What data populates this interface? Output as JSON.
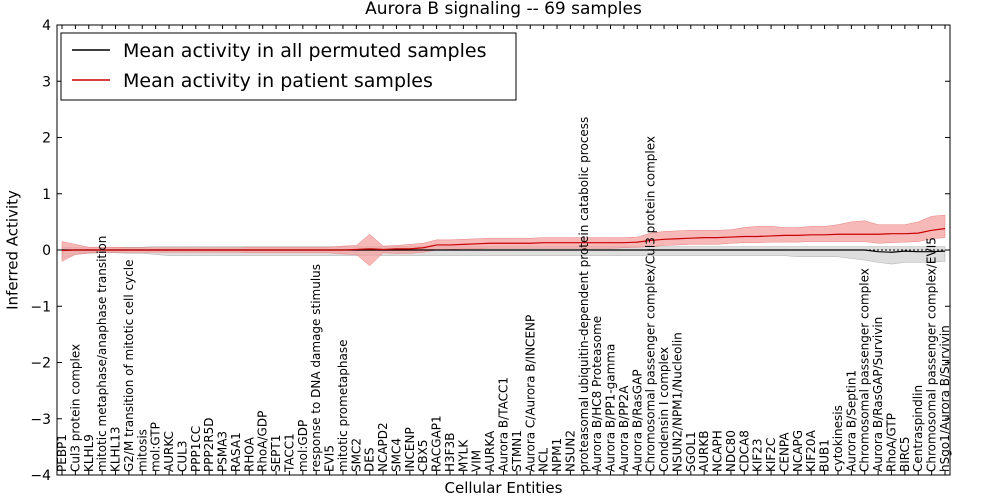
{
  "chart_data": {
    "type": "line",
    "title": "Aurora B signaling -- 69 samples",
    "xlabel": "Cellular Entities",
    "ylabel": "Inferred Activity",
    "ylim": [
      -4,
      4
    ],
    "yticks": [
      "−4",
      "−3",
      "−2",
      "−1",
      "0",
      "1",
      "2",
      "3",
      "4"
    ],
    "legend_position": "top-left",
    "colors": {
      "permuted": "#000000",
      "patient": "#cc0000",
      "patient_band": "#f4a0a0",
      "permuted_band": "#c8c8c8"
    },
    "categories": [
      "PEBP1",
      "Cul3 protein complex",
      "KLHL9",
      "mitotic metaphase/anaphase transition",
      "KLHL13",
      "G2/M transition of mitotic cell cycle",
      "mitosis",
      "mol:GTP",
      "AURKC",
      "CUL3",
      "PPP1CC",
      "PPP2R5D",
      "PSMA3",
      "RASA1",
      "RHOA",
      "RhoA/GDP",
      "SEPT1",
      "TACC1",
      "mol:GDP",
      "response to DNA damage stimulus",
      "EVI5",
      "mitotic prometaphase",
      "SMC2",
      "DES",
      "NCAPD2",
      "SMC4",
      "INCENP",
      "CBX5",
      "RACGAP1",
      "H3F3B",
      "MYLK",
      "VIM",
      "AURKA",
      "Aurora B/TACC1",
      "STMN1",
      "Aurora C/Aurora B/INCENP",
      "NCL",
      "NPM1",
      "NSUN2",
      "proteasomal ubiquitin-dependent protein catabolic process",
      "Aurora B/HC8 Proteasome",
      "Aurora B/PP1-gamma",
      "Aurora B/PP2A",
      "Aurora B/RasGAP",
      "Chromosomal passenger complex/Cul3 protein complex",
      "Condensin I complex",
      "NSUN2/NPM1/Nucleolin",
      "SGOL1",
      "AURKB",
      "NCAPH",
      "NDC80",
      "CDCA8",
      "KIF23",
      "KIF2C",
      "CENPA",
      "NCAPG",
      "KIF20A",
      "BUB1",
      "cytokinesis",
      "Aurora B/Septin1",
      "Chromosomal passenger complex",
      "Aurora B/RasGAP/Survivin",
      "RhoA/GTP",
      "BIRC5",
      "Centraspindlin",
      "Chromosomal passenger complex/EVI5",
      "hSgo1/Aurora B/Survivin"
    ],
    "series": [
      {
        "name": "Mean activity in all permuted samples",
        "values": [
          0,
          0,
          0,
          0,
          0,
          0,
          0,
          0,
          0,
          0,
          0,
          0,
          0,
          0,
          0,
          0,
          0,
          0,
          0,
          0,
          0,
          0,
          0,
          0,
          0,
          0,
          0,
          0,
          0,
          0,
          0,
          0,
          0,
          0,
          0,
          0,
          0,
          0,
          0,
          0,
          0,
          0,
          0,
          0,
          0,
          0,
          0,
          0,
          0,
          0,
          0,
          0,
          0,
          0,
          0,
          0,
          0,
          0,
          0,
          0,
          0,
          -0.03,
          -0.04,
          -0.02,
          -0.03,
          -0.03,
          -0.02
        ],
        "lower": [
          -0.15,
          -0.08,
          -0.06,
          -0.05,
          -0.05,
          -0.06,
          -0.06,
          -0.08,
          -0.1,
          -0.1,
          -0.1,
          -0.1,
          -0.1,
          -0.1,
          -0.1,
          -0.1,
          -0.1,
          -0.1,
          -0.1,
          -0.1,
          -0.1,
          -0.1,
          -0.1,
          -0.1,
          -0.1,
          -0.1,
          -0.1,
          -0.1,
          -0.1,
          -0.1,
          -0.1,
          -0.1,
          -0.1,
          -0.1,
          -0.1,
          -0.1,
          -0.1,
          -0.1,
          -0.1,
          -0.1,
          -0.1,
          -0.1,
          -0.1,
          -0.1,
          -0.1,
          -0.1,
          -0.1,
          -0.1,
          -0.1,
          -0.1,
          -0.1,
          -0.1,
          -0.1,
          -0.1,
          -0.1,
          -0.12,
          -0.12,
          -0.12,
          -0.12,
          -0.15,
          -0.18,
          -0.22,
          -0.25,
          -0.22,
          -0.22,
          -0.22,
          -0.2
        ],
        "upper": [
          0.05,
          0.05,
          0.05,
          0.05,
          0.05,
          0.05,
          0.05,
          0.06,
          0.06,
          0.06,
          0.06,
          0.06,
          0.06,
          0.06,
          0.06,
          0.06,
          0.06,
          0.06,
          0.06,
          0.06,
          0.06,
          0.06,
          0.06,
          0.06,
          0.06,
          0.06,
          0.06,
          0.06,
          0.06,
          0.06,
          0.06,
          0.06,
          0.06,
          0.06,
          0.06,
          0.06,
          0.06,
          0.06,
          0.06,
          0.06,
          0.06,
          0.06,
          0.06,
          0.06,
          0.06,
          0.06,
          0.06,
          0.06,
          0.06,
          0.06,
          0.06,
          0.06,
          0.06,
          0.06,
          0.06,
          0.06,
          0.06,
          0.06,
          0.06,
          0.06,
          0.06,
          0.06,
          0.06,
          0.06,
          0.06,
          0.06,
          0.06
        ]
      },
      {
        "name": "Mean activity in patient samples",
        "values": [
          -0.01,
          0,
          0,
          0,
          0,
          0,
          0,
          0,
          0,
          0,
          0,
          0,
          0,
          0,
          0,
          0,
          0,
          0,
          0,
          0,
          0,
          0,
          0.01,
          0.02,
          0.01,
          0.02,
          0.02,
          0.04,
          0.09,
          0.09,
          0.1,
          0.11,
          0.12,
          0.12,
          0.12,
          0.12,
          0.13,
          0.13,
          0.13,
          0.13,
          0.13,
          0.13,
          0.13,
          0.14,
          0.17,
          0.19,
          0.2,
          0.21,
          0.22,
          0.22,
          0.23,
          0.24,
          0.24,
          0.25,
          0.26,
          0.26,
          0.27,
          0.27,
          0.28,
          0.28,
          0.28,
          0.28,
          0.29,
          0.29,
          0.3,
          0.35,
          0.38
        ],
        "lower": [
          -0.2,
          -0.08,
          -0.05,
          -0.04,
          -0.04,
          -0.04,
          -0.04,
          -0.04,
          -0.04,
          -0.04,
          -0.04,
          -0.04,
          -0.04,
          -0.04,
          -0.05,
          -0.05,
          -0.05,
          -0.05,
          -0.05,
          -0.05,
          -0.05,
          -0.07,
          -0.08,
          -0.28,
          -0.05,
          -0.06,
          -0.06,
          -0.04,
          0.0,
          0.01,
          0.02,
          0.02,
          0.03,
          0.03,
          0.03,
          0.03,
          0.03,
          0.03,
          0.03,
          0.03,
          0.03,
          0.03,
          0.04,
          0.05,
          0.06,
          0.08,
          0.09,
          0.1,
          0.1,
          0.1,
          0.12,
          0.13,
          0.13,
          0.14,
          0.14,
          0.14,
          0.15,
          0.15,
          0.15,
          0.15,
          0.15,
          0.12,
          0.13,
          0.14,
          0.15,
          0.2,
          0.22
        ],
        "upper": [
          0.15,
          0.1,
          0.05,
          0.05,
          0.05,
          0.04,
          0.04,
          0.04,
          0.04,
          0.04,
          0.04,
          0.04,
          0.04,
          0.04,
          0.05,
          0.05,
          0.05,
          0.05,
          0.05,
          0.05,
          0.05,
          0.07,
          0.08,
          0.28,
          0.07,
          0.08,
          0.1,
          0.12,
          0.18,
          0.18,
          0.19,
          0.2,
          0.21,
          0.21,
          0.21,
          0.21,
          0.22,
          0.22,
          0.22,
          0.22,
          0.22,
          0.22,
          0.22,
          0.23,
          0.3,
          0.33,
          0.34,
          0.35,
          0.35,
          0.35,
          0.36,
          0.4,
          0.42,
          0.42,
          0.4,
          0.4,
          0.42,
          0.42,
          0.45,
          0.5,
          0.52,
          0.45,
          0.45,
          0.45,
          0.5,
          0.6,
          0.62
        ]
      }
    ]
  }
}
